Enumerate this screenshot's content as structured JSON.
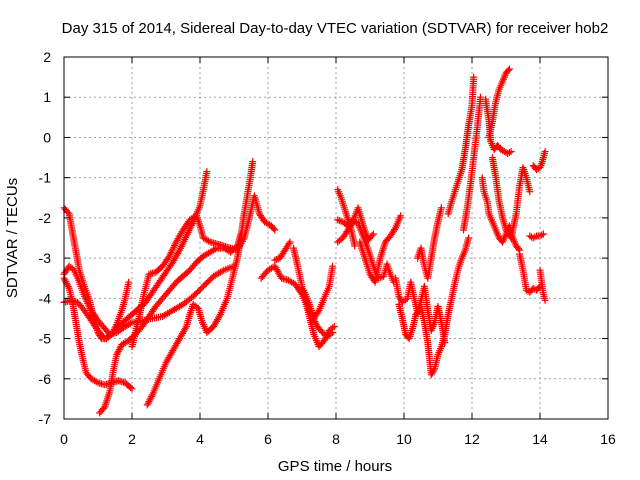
{
  "chart_data": {
    "type": "scatter",
    "title": "Day 315 of 2014, Sidereal Day-to-day VTEC variation (SDTVAR) for receiver hob2",
    "xlabel": "GPS time / hours",
    "ylabel": "SDTVAR / TECUs",
    "xlim": [
      0,
      16
    ],
    "ylim": [
      -7,
      2
    ],
    "xticks": [
      "0",
      "2",
      "4",
      "6",
      "8",
      "10",
      "12",
      "14",
      "16"
    ],
    "yticks": [
      "2",
      "1",
      "0",
      "-1",
      "-2",
      "-3",
      "-4",
      "-5",
      "-6",
      "-7"
    ],
    "grid": true,
    "marker": "plus",
    "color": "#ff0000",
    "segments": [
      [
        [
          0.0,
          -1.75
        ],
        [
          0.15,
          -1.9
        ],
        [
          0.3,
          -2.6
        ],
        [
          0.45,
          -3.3
        ],
        [
          0.6,
          -3.7
        ],
        [
          0.75,
          -4.05
        ],
        [
          0.9,
          -4.6
        ],
        [
          1.0,
          -4.85
        ],
        [
          1.1,
          -5.0
        ],
        [
          1.25,
          -5.0
        ],
        [
          1.4,
          -4.9
        ],
        [
          1.55,
          -4.65
        ],
        [
          1.7,
          -4.3
        ],
        [
          1.8,
          -4.0
        ],
        [
          1.9,
          -3.6
        ]
      ],
      [
        [
          0.0,
          -3.5
        ],
        [
          0.15,
          -3.75
        ],
        [
          0.25,
          -4.1
        ],
        [
          0.35,
          -4.6
        ],
        [
          0.45,
          -5.1
        ],
        [
          0.55,
          -5.5
        ],
        [
          0.65,
          -5.85
        ],
        [
          0.8,
          -6.0
        ],
        [
          1.0,
          -6.1
        ],
        [
          1.2,
          -6.15
        ],
        [
          1.4,
          -6.1
        ],
        [
          1.6,
          -6.05
        ],
        [
          1.8,
          -6.1
        ],
        [
          2.0,
          -6.25
        ]
      ],
      [
        [
          0.0,
          -3.4
        ],
        [
          0.15,
          -3.2
        ],
        [
          0.3,
          -3.3
        ],
        [
          0.45,
          -3.6
        ],
        [
          0.6,
          -3.95
        ],
        [
          0.8,
          -4.3
        ],
        [
          1.0,
          -4.55
        ],
        [
          1.2,
          -4.75
        ],
        [
          1.35,
          -4.9
        ],
        [
          1.55,
          -4.85
        ],
        [
          1.8,
          -4.7
        ],
        [
          2.0,
          -4.6
        ],
        [
          2.3,
          -4.55
        ],
        [
          2.6,
          -4.5
        ],
        [
          2.9,
          -4.45
        ],
        [
          3.2,
          -4.3
        ],
        [
          3.5,
          -4.15
        ],
        [
          3.8,
          -3.95
        ],
        [
          4.1,
          -3.7
        ],
        [
          4.4,
          -3.45
        ],
        [
          4.7,
          -3.3
        ],
        [
          5.0,
          -3.2
        ]
      ],
      [
        [
          0.0,
          -4.1
        ],
        [
          0.2,
          -4.05
        ],
        [
          0.4,
          -4.1
        ],
        [
          0.6,
          -4.3
        ],
        [
          0.8,
          -4.55
        ],
        [
          1.0,
          -4.8
        ],
        [
          1.2,
          -5.0
        ],
        [
          1.4,
          -4.9
        ],
        [
          1.6,
          -4.7
        ],
        [
          1.8,
          -4.55
        ],
        [
          2.0,
          -4.4
        ],
        [
          2.2,
          -4.25
        ],
        [
          2.4,
          -4.1
        ],
        [
          2.6,
          -3.85
        ],
        [
          2.8,
          -3.6
        ],
        [
          3.0,
          -3.35
        ],
        [
          3.2,
          -3.1
        ],
        [
          3.4,
          -2.8
        ],
        [
          3.6,
          -2.45
        ],
        [
          3.8,
          -2.1
        ],
        [
          4.0,
          -1.7
        ],
        [
          4.1,
          -1.3
        ],
        [
          4.2,
          -0.85
        ]
      ],
      [
        [
          1.05,
          -6.85
        ],
        [
          1.2,
          -6.7
        ],
        [
          1.35,
          -6.3
        ],
        [
          1.45,
          -5.8
        ],
        [
          1.55,
          -5.4
        ],
        [
          1.7,
          -5.15
        ],
        [
          1.9,
          -5.05
        ],
        [
          2.1,
          -4.9
        ],
        [
          2.3,
          -4.7
        ],
        [
          2.5,
          -4.45
        ],
        [
          2.7,
          -4.2
        ],
        [
          2.9,
          -4.0
        ],
        [
          3.1,
          -3.8
        ],
        [
          3.3,
          -3.6
        ],
        [
          3.5,
          -3.45
        ],
        [
          3.7,
          -3.3
        ],
        [
          3.9,
          -3.1
        ],
        [
          4.1,
          -2.95
        ],
        [
          4.3,
          -2.85
        ],
        [
          4.5,
          -2.75
        ],
        [
          4.7,
          -2.75
        ],
        [
          4.9,
          -2.85
        ],
        [
          5.1,
          -2.7
        ],
        [
          5.2,
          -2.4
        ]
      ],
      [
        [
          2.0,
          -5.2
        ],
        [
          2.2,
          -4.5
        ],
        [
          2.35,
          -3.9
        ],
        [
          2.5,
          -3.4
        ],
        [
          2.7,
          -3.35
        ],
        [
          2.9,
          -3.2
        ],
        [
          3.1,
          -2.95
        ],
        [
          3.3,
          -2.6
        ],
        [
          3.5,
          -2.3
        ],
        [
          3.7,
          -2.05
        ],
        [
          3.9,
          -1.95
        ],
        [
          4.0,
          -2.2
        ],
        [
          4.1,
          -2.5
        ],
        [
          4.3,
          -2.6
        ],
        [
          4.5,
          -2.65
        ],
        [
          4.7,
          -2.7
        ],
        [
          4.9,
          -2.75
        ],
        [
          5.1,
          -2.8
        ],
        [
          5.3,
          -2.5
        ],
        [
          5.45,
          -2.0
        ],
        [
          5.6,
          -1.45
        ],
        [
          5.75,
          -1.9
        ],
        [
          5.9,
          -2.1
        ],
        [
          6.1,
          -2.2
        ],
        [
          6.2,
          -2.3
        ]
      ],
      [
        [
          2.45,
          -6.65
        ],
        [
          2.6,
          -6.4
        ],
        [
          2.8,
          -6.0
        ],
        [
          3.0,
          -5.6
        ],
        [
          3.2,
          -5.3
        ],
        [
          3.4,
          -5.0
        ],
        [
          3.6,
          -4.7
        ],
        [
          3.7,
          -4.4
        ],
        [
          3.8,
          -4.15
        ],
        [
          3.95,
          -4.25
        ],
        [
          4.05,
          -4.55
        ],
        [
          4.2,
          -4.85
        ],
        [
          4.4,
          -4.7
        ],
        [
          4.6,
          -4.4
        ],
        [
          4.8,
          -4.0
        ],
        [
          4.95,
          -3.5
        ],
        [
          5.1,
          -3.0
        ],
        [
          5.2,
          -2.5
        ],
        [
          5.3,
          -1.9
        ],
        [
          5.4,
          -1.4
        ],
        [
          5.5,
          -0.9
        ],
        [
          5.55,
          -0.6
        ]
      ],
      [
        [
          5.8,
          -3.5
        ],
        [
          6.0,
          -3.3
        ],
        [
          6.2,
          -3.2
        ],
        [
          6.4,
          -3.5
        ],
        [
          6.6,
          -3.55
        ],
        [
          6.8,
          -3.65
        ],
        [
          7.0,
          -3.9
        ],
        [
          7.15,
          -4.2
        ],
        [
          7.3,
          -4.45
        ],
        [
          7.45,
          -4.7
        ],
        [
          7.6,
          -4.85
        ],
        [
          7.75,
          -4.95
        ],
        [
          7.9,
          -4.85
        ]
      ],
      [
        [
          6.2,
          -3.05
        ],
        [
          6.35,
          -3.0
        ],
        [
          6.5,
          -2.8
        ],
        [
          6.65,
          -2.6
        ]
      ],
      [
        [
          6.75,
          -2.75
        ],
        [
          6.9,
          -3.3
        ],
        [
          7.05,
          -3.9
        ],
        [
          7.2,
          -4.4
        ],
        [
          7.35,
          -4.9
        ],
        [
          7.5,
          -5.2
        ],
        [
          7.65,
          -5.05
        ],
        [
          7.8,
          -4.8
        ],
        [
          7.95,
          -4.7
        ]
      ],
      [
        [
          7.05,
          -3.8
        ],
        [
          7.2,
          -4.1
        ],
        [
          7.35,
          -4.5
        ],
        [
          7.5,
          -4.3
        ],
        [
          7.65,
          -4.0
        ],
        [
          7.8,
          -3.7
        ],
        [
          7.9,
          -3.2
        ]
      ],
      [
        [
          8.05,
          -1.3
        ],
        [
          8.15,
          -1.5
        ],
        [
          8.3,
          -1.9
        ],
        [
          8.45,
          -2.3
        ],
        [
          8.55,
          -2.7
        ]
      ],
      [
        [
          8.05,
          -2.6
        ],
        [
          8.2,
          -2.5
        ],
        [
          8.35,
          -2.3
        ],
        [
          8.5,
          -2.1
        ],
        [
          8.65,
          -1.75
        ],
        [
          8.8,
          -2.2
        ],
        [
          8.95,
          -2.55
        ],
        [
          9.1,
          -2.4
        ]
      ],
      [
        [
          8.05,
          -2.05
        ],
        [
          8.2,
          -2.1
        ],
        [
          8.35,
          -2.2
        ],
        [
          8.5,
          -2.05
        ],
        [
          8.65,
          -2.15
        ],
        [
          8.8,
          -2.45
        ],
        [
          8.95,
          -2.8
        ],
        [
          9.1,
          -3.2
        ],
        [
          9.25,
          -3.5
        ],
        [
          9.4,
          -3.45
        ],
        [
          9.5,
          -3.15
        ],
        [
          9.6,
          -3.4
        ],
        [
          9.7,
          -3.6
        ]
      ],
      [
        [
          8.7,
          -2.6
        ],
        [
          8.85,
          -3.0
        ],
        [
          9.0,
          -3.4
        ],
        [
          9.15,
          -3.6
        ],
        [
          9.3,
          -3.0
        ],
        [
          9.45,
          -2.6
        ],
        [
          9.6,
          -2.45
        ],
        [
          9.75,
          -2.25
        ],
        [
          9.9,
          -1.95
        ]
      ],
      [
        [
          9.75,
          -3.5
        ],
        [
          9.85,
          -3.95
        ],
        [
          9.95,
          -4.1
        ],
        [
          10.1,
          -4.0
        ],
        [
          10.2,
          -3.6
        ],
        [
          10.3,
          -4.0
        ],
        [
          10.4,
          -4.35
        ],
        [
          10.5,
          -4.05
        ],
        [
          10.6,
          -3.7
        ],
        [
          10.7,
          -4.3
        ],
        [
          10.8,
          -4.8
        ],
        [
          10.9,
          -4.6
        ],
        [
          11.0,
          -4.2
        ],
        [
          11.1,
          -4.6
        ],
        [
          11.2,
          -5.1
        ]
      ],
      [
        [
          9.85,
          -4.15
        ],
        [
          9.95,
          -4.5
        ],
        [
          10.05,
          -4.9
        ],
        [
          10.15,
          -5.0
        ],
        [
          10.25,
          -4.75
        ],
        [
          10.35,
          -4.4
        ],
        [
          10.45,
          -4.3
        ]
      ],
      [
        [
          10.4,
          -3.0
        ],
        [
          10.5,
          -2.75
        ],
        [
          10.6,
          -3.2
        ],
        [
          10.7,
          -3.5
        ],
        [
          10.8,
          -3.0
        ],
        [
          10.9,
          -2.5
        ],
        [
          11.0,
          -2.1
        ],
        [
          11.1,
          -1.75
        ]
      ],
      [
        [
          10.5,
          -4.2
        ],
        [
          10.6,
          -4.6
        ],
        [
          10.7,
          -5.1
        ],
        [
          10.75,
          -5.5
        ],
        [
          10.8,
          -5.9
        ],
        [
          10.9,
          -5.75
        ],
        [
          11.0,
          -5.4
        ],
        [
          11.1,
          -5.2
        ],
        [
          11.2,
          -4.9
        ],
        [
          11.3,
          -4.4
        ],
        [
          11.4,
          -4.0
        ],
        [
          11.5,
          -3.6
        ],
        [
          11.6,
          -3.25
        ],
        [
          11.7,
          -3.0
        ],
        [
          11.8,
          -2.8
        ],
        [
          11.9,
          -2.5
        ]
      ],
      [
        [
          11.3,
          -1.9
        ],
        [
          11.4,
          -1.6
        ],
        [
          11.55,
          -1.2
        ],
        [
          11.7,
          -0.8
        ],
        [
          11.8,
          -0.3
        ],
        [
          11.9,
          0.3
        ],
        [
          12.0,
          0.8
        ],
        [
          12.05,
          1.5
        ]
      ],
      [
        [
          11.75,
          -2.3
        ],
        [
          11.85,
          -1.8
        ],
        [
          11.95,
          -1.2
        ],
        [
          12.05,
          -0.5
        ],
        [
          12.15,
          0.2
        ],
        [
          12.25,
          1.0
        ]
      ],
      [
        [
          12.3,
          -1.0
        ],
        [
          12.35,
          -1.35
        ],
        [
          12.45,
          -1.6
        ],
        [
          12.5,
          -1.9
        ],
        [
          12.6,
          -2.1
        ],
        [
          12.7,
          -2.3
        ],
        [
          12.8,
          -2.5
        ],
        [
          12.9,
          -2.6
        ],
        [
          13.0,
          -2.4
        ],
        [
          13.1,
          -2.2
        ],
        [
          13.2,
          -2.5
        ],
        [
          13.3,
          -2.7
        ],
        [
          13.4,
          -2.8
        ]
      ],
      [
        [
          12.4,
          0.95
        ],
        [
          12.5,
          0.4
        ],
        [
          12.55,
          -0.1
        ],
        [
          12.65,
          -0.3
        ],
        [
          12.75,
          -0.2
        ],
        [
          12.85,
          -0.3
        ],
        [
          12.95,
          -0.35
        ],
        [
          13.05,
          -0.4
        ],
        [
          13.15,
          -0.35
        ]
      ],
      [
        [
          12.5,
          0.0
        ],
        [
          12.6,
          0.4
        ],
        [
          12.7,
          0.9
        ],
        [
          12.8,
          1.2
        ],
        [
          12.9,
          1.4
        ],
        [
          13.0,
          1.6
        ],
        [
          13.1,
          1.7
        ]
      ],
      [
        [
          12.6,
          -0.5
        ],
        [
          12.7,
          -1.0
        ],
        [
          12.8,
          -1.6
        ],
        [
          12.9,
          -2.0
        ],
        [
          13.0,
          -2.3
        ],
        [
          13.15,
          -2.5
        ],
        [
          13.3,
          -1.9
        ],
        [
          13.4,
          -1.2
        ],
        [
          13.5,
          -0.75
        ],
        [
          13.6,
          -1.0
        ],
        [
          13.7,
          -1.35
        ]
      ],
      [
        [
          13.4,
          -2.9
        ],
        [
          13.5,
          -3.3
        ],
        [
          13.6,
          -3.8
        ],
        [
          13.7,
          -3.85
        ],
        [
          13.8,
          -3.75
        ],
        [
          13.9,
          -3.8
        ],
        [
          14.0,
          -3.7
        ]
      ],
      [
        [
          13.7,
          -2.45
        ],
        [
          13.8,
          -2.5
        ],
        [
          13.9,
          -2.45
        ],
        [
          14.0,
          -2.45
        ],
        [
          14.1,
          -2.4
        ]
      ],
      [
        [
          13.8,
          -0.7
        ],
        [
          13.9,
          -0.8
        ],
        [
          14.0,
          -0.75
        ],
        [
          14.05,
          -0.65
        ],
        [
          14.1,
          -0.5
        ],
        [
          14.15,
          -0.35
        ]
      ],
      [
        [
          14.0,
          -3.3
        ],
        [
          14.05,
          -3.6
        ],
        [
          14.1,
          -3.9
        ],
        [
          14.15,
          -4.05
        ]
      ]
    ]
  }
}
